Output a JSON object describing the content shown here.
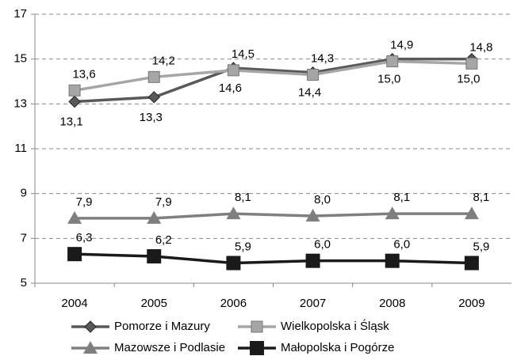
{
  "chart_data": {
    "type": "line",
    "categories": [
      "2004",
      "2005",
      "2006",
      "2007",
      "2008",
      "2009"
    ],
    "series": [
      {
        "name": "Pomorze i  Mazury",
        "color": "#595959",
        "marker": "diamond",
        "values": [
          13.1,
          13.3,
          14.6,
          14.4,
          15.0,
          15.0
        ],
        "value_labels": [
          "13,1",
          "13,3",
          "14,6",
          "14,4",
          "15,0",
          "15,0"
        ]
      },
      {
        "name": "Wielkopolska i Śląsk",
        "color": "#a6a6a6",
        "marker": "square",
        "values": [
          13.6,
          14.2,
          14.5,
          14.3,
          14.9,
          14.8
        ],
        "value_labels": [
          "13,6",
          "14,2",
          "14,5",
          "14,3",
          "14,9",
          "14,8"
        ]
      },
      {
        "name": "Mazowsze i Podlasie",
        "color": "#7f7f7f",
        "marker": "triangle",
        "values": [
          7.9,
          7.9,
          8.1,
          8.0,
          8.1,
          8.1
        ],
        "value_labels": [
          "7,9",
          "7,9",
          "8,1",
          "8,0",
          "8,1",
          "8,1"
        ]
      },
      {
        "name": "Małopolska i Pogórze",
        "color": "#1a1a1a",
        "marker": "bigsquare",
        "values": [
          6.3,
          6.2,
          5.9,
          6.0,
          6.0,
          5.9
        ],
        "value_labels": [
          "6,3",
          "6,2",
          "5,9",
          "6,0",
          "6,0",
          "5,9"
        ]
      }
    ],
    "ylim": [
      5,
      17
    ],
    "yticks": [
      5,
      7,
      9,
      11,
      13,
      15,
      17
    ],
    "grid": true,
    "legend": "bottom"
  }
}
